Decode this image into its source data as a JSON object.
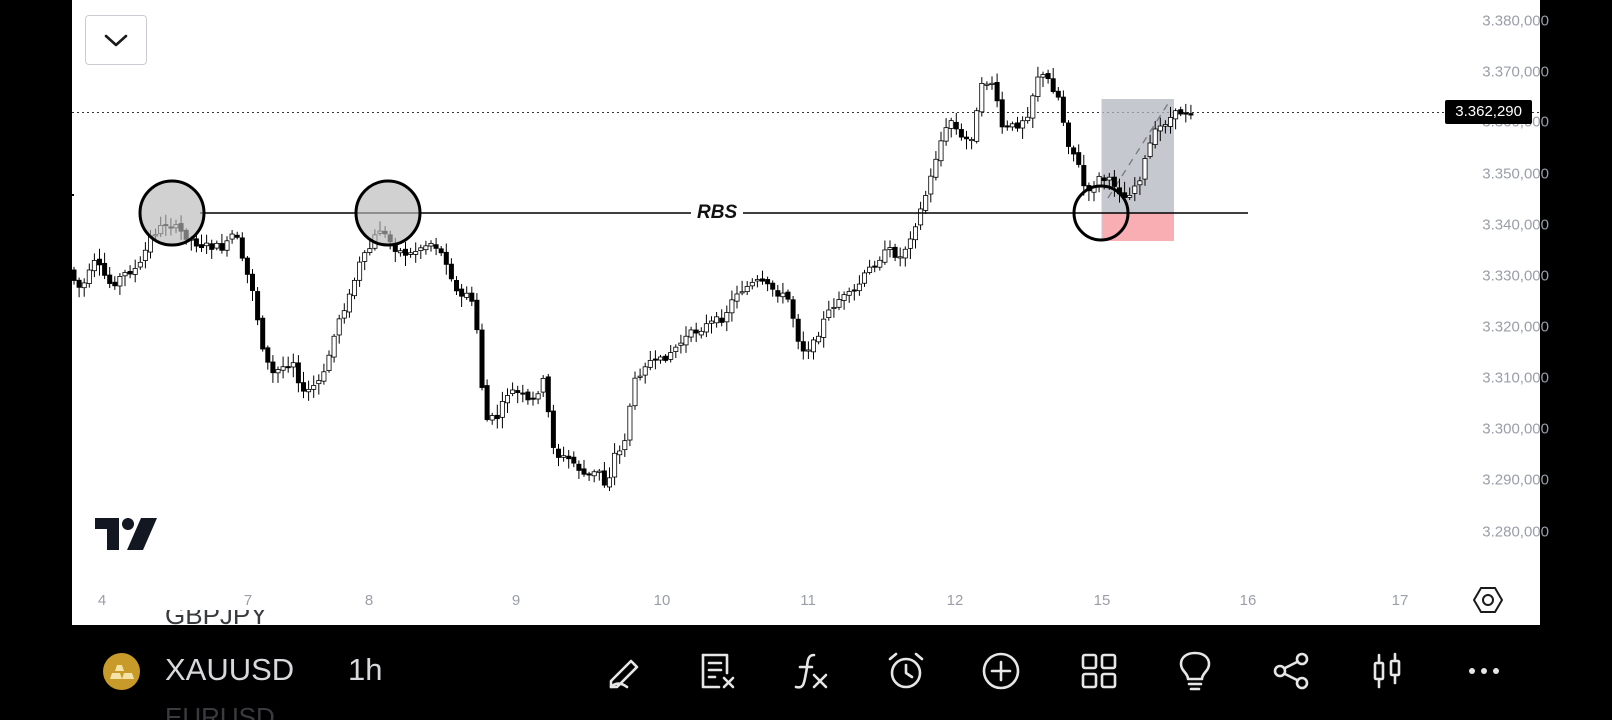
{
  "chart": {
    "symbol": "XAUUSD",
    "interval": "1h",
    "last_price": "3.362,290",
    "annotation_label": "RBS",
    "price_axis_labels": [
      "3.380,000",
      "3.370,000",
      "3.360,000",
      "3.350,000",
      "3.340,000",
      "3.330,000",
      "3.320,000",
      "3.310,000",
      "3.300,000",
      "3.290,000",
      "3.280,000"
    ],
    "time_axis_labels": [
      "4",
      "7",
      "8",
      "9",
      "10",
      "11",
      "12",
      "15",
      "16",
      "17"
    ],
    "colors": {
      "up_candle_fill": "#ffffff",
      "down_candle_fill": "#000000",
      "wick": "#000000",
      "position_profit": "#b2b5be",
      "position_loss": "#f7a5ab"
    }
  },
  "symbol_list": {
    "previous": "GBPJPY",
    "next": "EURUSD"
  },
  "toolbar": {
    "collapse_icon": "chevron-down-icon",
    "tools": [
      "draw-icon",
      "object-tree-icon",
      "indicators-icon",
      "alert-icon",
      "add-icon",
      "layouts-icon",
      "ideas-icon",
      "share-icon",
      "chart-type-icon",
      "more-icon"
    ]
  }
}
